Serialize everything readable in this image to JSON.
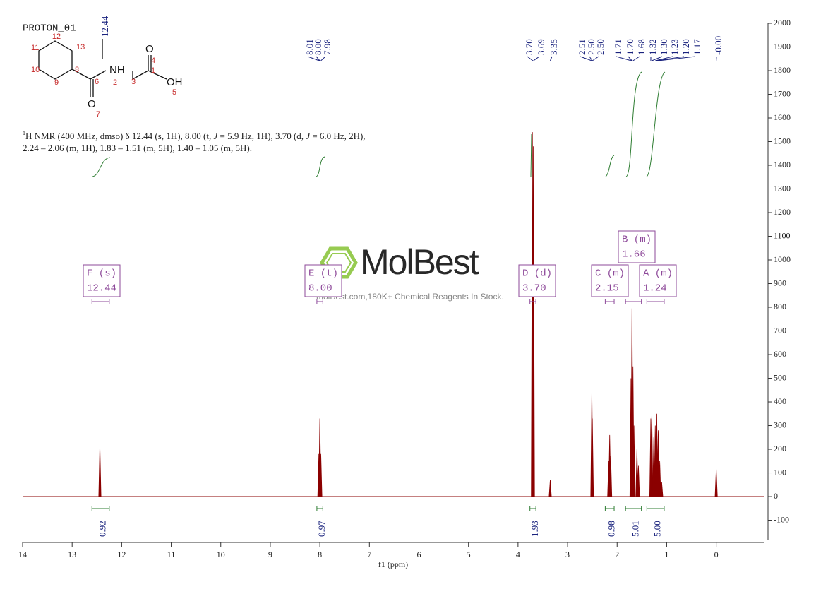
{
  "chart_data": {
    "type": "nmr",
    "title": "PROTON_01",
    "xlabel": "f1 (ppm)",
    "description": [
      "1",
      "H NMR (400 MHz, dmso) δ 12.44 (s, 1H), 8.00 (t, ",
      "J",
      " = 5.9 Hz, 1H), 3.70 (d, ",
      "J",
      " = 6.0 Hz, 2H),"
    ],
    "description_line2": "2.24 – 2.06 (m, 1H), 1.83 – 1.51 (m, 5H), 1.40 – 1.05 (m, 5H).",
    "structure": {
      "atoms": [
        "1",
        "2",
        "3",
        "4",
        "5",
        "6",
        "7",
        "8",
        "9",
        "10",
        "11",
        "12",
        "13"
      ],
      "groups": [
        "NH",
        "O",
        "OH",
        "O"
      ],
      "methyl_shift": "12.44"
    },
    "watermark": {
      "logo": "MolBest",
      "text": "molBest.com,180K+ Chemical Reagents In Stock."
    },
    "xlim": [
      14,
      -0.96
    ],
    "xticks": [
      14,
      13,
      12,
      11,
      10,
      9,
      8,
      7,
      6,
      5,
      4,
      3,
      2,
      1,
      0
    ],
    "ylim": [
      -185,
      2000
    ],
    "yticks": [
      -100,
      0,
      100,
      200,
      300,
      400,
      500,
      600,
      700,
      800,
      900,
      1000,
      1100,
      1200,
      1300,
      1400,
      1500,
      1600,
      1700,
      1800,
      1900,
      2000
    ],
    "series": [
      {
        "name": "spectrum",
        "color": "#8b0000",
        "x": [
          12.44,
          8.02,
          8.0,
          7.98,
          3.71,
          3.69,
          3.35,
          2.51,
          2.5,
          2.17,
          2.15,
          2.13,
          1.72,
          1.7,
          1.68,
          1.66,
          1.6,
          1.57,
          1.32,
          1.3,
          1.26,
          1.23,
          1.2,
          1.17,
          1.14,
          1.1,
          0.0
        ],
        "values": [
          215,
          180,
          330,
          180,
          1540,
          1480,
          70,
          450,
          330,
          150,
          260,
          170,
          500,
          795,
          550,
          300,
          200,
          130,
          330,
          340,
          250,
          300,
          350,
          280,
          150,
          60,
          115
        ]
      }
    ],
    "peak_labels": [
      {
        "value": 8.01,
        "label": "8.01"
      },
      {
        "value": 8.0,
        "label": "8.00"
      },
      {
        "value": 7.98,
        "label": "7.98"
      },
      {
        "value": 3.7,
        "label": "3.70"
      },
      {
        "value": 3.69,
        "label": "3.69"
      },
      {
        "value": 3.35,
        "label": "3.35"
      },
      {
        "value": 2.51,
        "label": "2.51"
      },
      {
        "value": 2.5,
        "label": "2.50"
      },
      {
        "value": 2.5,
        "label": "2.50"
      },
      {
        "value": 1.71,
        "label": "1.71"
      },
      {
        "value": 1.7,
        "label": "1.70"
      },
      {
        "value": 1.68,
        "label": "1.68"
      },
      {
        "value": 1.32,
        "label": "1.32"
      },
      {
        "value": 1.3,
        "label": "1.30"
      },
      {
        "value": 1.23,
        "label": "1.23"
      },
      {
        "value": 1.2,
        "label": "1.20"
      },
      {
        "value": 1.17,
        "label": "1.17"
      },
      {
        "value": 0,
        "label": "-0.00"
      }
    ],
    "multiplets": [
      {
        "name": "F (s)",
        "shift": {
          "value": 12.44,
          "label": "12.44"
        },
        "from": 12.6,
        "to": 12.25
      },
      {
        "name": "E (t)",
        "shift": {
          "value": 8.0,
          "label": "8.00"
        },
        "from": 8.06,
        "to": 7.94
      },
      {
        "name": "D (d)",
        "shift": {
          "value": 3.7,
          "label": "3.70"
        },
        "from": 3.76,
        "to": 3.64
      },
      {
        "name": "C (m)",
        "shift": {
          "value": 2.15,
          "label": "2.15"
        },
        "from": 2.24,
        "to": 2.06
      },
      {
        "name": "B (m)",
        "shift": {
          "value": 1.66,
          "label": "1.66"
        },
        "from": 1.83,
        "to": 1.51
      },
      {
        "name": "A (m)",
        "shift": {
          "value": 1.24,
          "label": "1.24"
        },
        "from": 1.4,
        "to": 1.05
      }
    ],
    "integrals": [
      {
        "value": 0.92,
        "label": "0.92",
        "from": 12.6,
        "to": 12.25
      },
      {
        "value": 0.97,
        "label": "0.97",
        "from": 8.06,
        "to": 7.94
      },
      {
        "value": 1.93,
        "label": "1.93",
        "from": 3.76,
        "to": 3.64
      },
      {
        "value": 0.98,
        "label": "0.98",
        "from": 2.24,
        "to": 2.06
      },
      {
        "value": 5.01,
        "label": "5.01",
        "from": 1.83,
        "to": 1.51
      },
      {
        "value": 5.0,
        "label": "5.00",
        "from": 1.4,
        "to": 1.05
      }
    ]
  }
}
